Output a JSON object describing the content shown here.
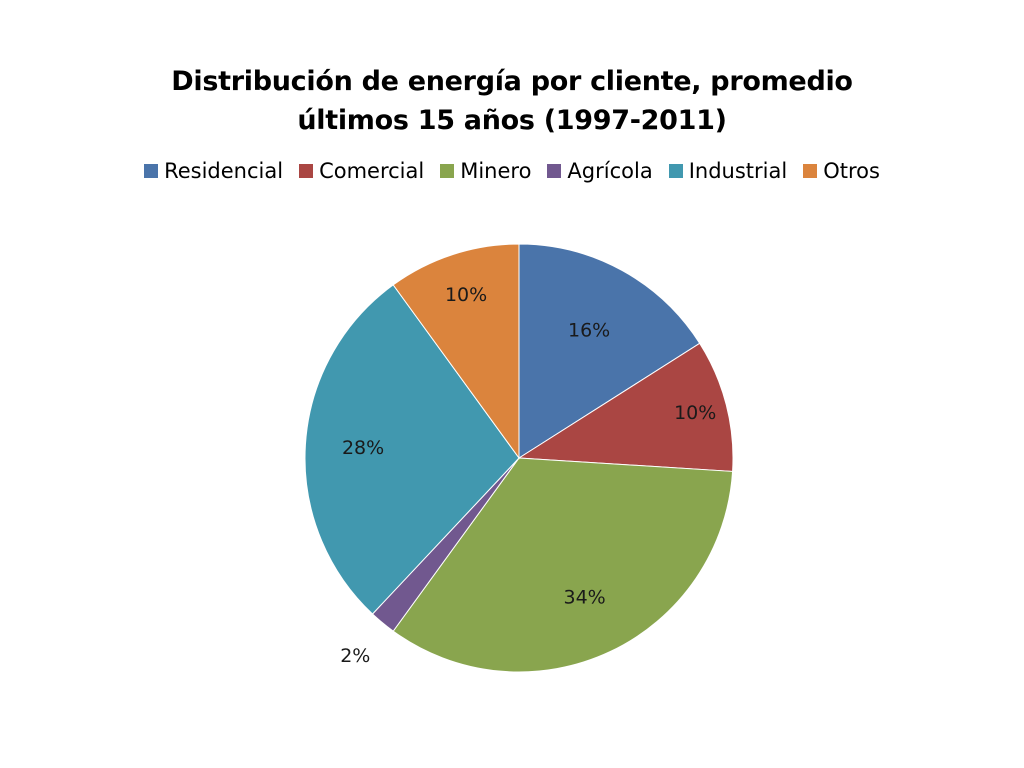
{
  "chart_data": {
    "type": "pie",
    "title_lines": [
      "Distribución de energía por cliente, promedio",
      "últimos 15 años (1997-2011)"
    ],
    "legend_placement": "top",
    "slices": [
      {
        "name": "Residencial",
        "value": 16,
        "label": "16%",
        "color": "#4a74aa"
      },
      {
        "name": "Comercial",
        "value": 10,
        "label": "10%",
        "color": "#aa4643"
      },
      {
        "name": "Minero",
        "value": 34,
        "label": "34%",
        "color": "#89a54e"
      },
      {
        "name": "Agrícola",
        "value": 2,
        "label": "2%",
        "color": "#71588f"
      },
      {
        "name": "Industrial",
        "value": 28,
        "label": "28%",
        "color": "#4198af"
      },
      {
        "name": "Otros",
        "value": 10,
        "label": "10%",
        "color": "#db843d"
      }
    ]
  }
}
